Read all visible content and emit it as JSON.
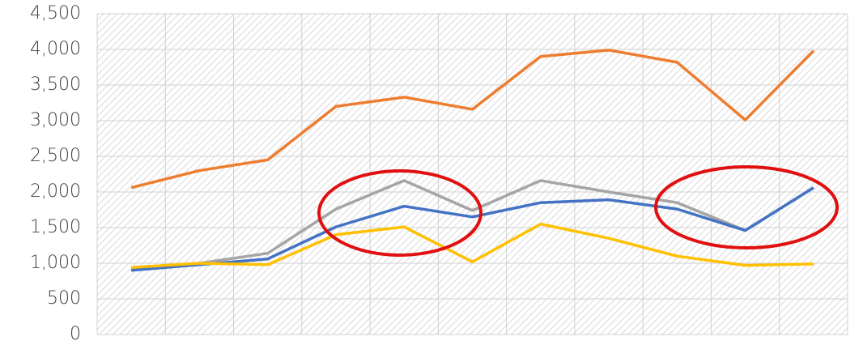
{
  "chart_data": {
    "type": "line",
    "categories": [
      null,
      null,
      null,
      null,
      null,
      null,
      null,
      null,
      null,
      null,
      null
    ],
    "series": [
      {
        "color": "#ed7d31",
        "values": [
          2060,
          2300,
          2450,
          3200,
          3330,
          3160,
          3900,
          3990,
          3820,
          3010,
          3980
        ]
      },
      {
        "color": "#a5a5a5",
        "values": [
          920,
          1000,
          1140,
          1760,
          2160,
          1740,
          2160,
          2000,
          1850,
          1460,
          2060
        ]
      },
      {
        "color": "#4472c4",
        "values": [
          900,
          980,
          1060,
          1510,
          1800,
          1650,
          1850,
          1890,
          1760,
          1460,
          2060
        ]
      },
      {
        "color": "#ffc000",
        "values": [
          940,
          1000,
          980,
          1400,
          1510,
          1020,
          1550,
          1350,
          1100,
          970,
          990
        ]
      }
    ],
    "ylim": [
      0,
      4500
    ],
    "yticks": [
      0,
      500,
      {
        "value": 1000,
        "label": "1,000"
      },
      {
        "value": 1500,
        "label": "1,500"
      },
      {
        "value": 2000,
        "label": "2,000"
      },
      {
        "value": 2500,
        "label": "2,500"
      },
      {
        "value": 3000,
        "label": "3,000"
      },
      {
        "value": 3500,
        "label": "3,500"
      },
      {
        "value": 4000,
        "label": "4,000"
      },
      {
        "value": 4500,
        "label": "4,500"
      }
    ],
    "grid": true
  }
}
